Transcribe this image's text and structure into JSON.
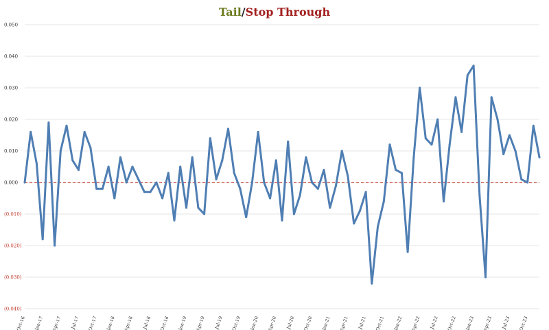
{
  "title": {
    "tail": "Tail",
    "separator": "/",
    "stop_through": "Stop Through"
  },
  "colors": {
    "line": "#4f7eb3",
    "zero_line": "#c0392b",
    "tail_title": "#6b7a1e",
    "stop_title": "#a32020",
    "negative_tick": "#c0392b"
  },
  "chart_data": {
    "type": "line",
    "title": "Tail/Stop Through",
    "ylim": [
      -0.04,
      0.05
    ],
    "grid": "horizontal",
    "reference_line": {
      "y": 0,
      "style": "dashed"
    },
    "y_ticks": [
      {
        "value": 0.05,
        "label": "0.050"
      },
      {
        "value": 0.04,
        "label": "0.040"
      },
      {
        "value": 0.03,
        "label": "0.030"
      },
      {
        "value": 0.02,
        "label": "0.020"
      },
      {
        "value": 0.01,
        "label": "0.010"
      },
      {
        "value": 0.0,
        "label": "0.000"
      },
      {
        "value": -0.01,
        "label": "(0.010)"
      },
      {
        "value": -0.02,
        "label": "(0.020)"
      },
      {
        "value": -0.03,
        "label": "(0.030)"
      },
      {
        "value": -0.04,
        "label": "(0.040)"
      }
    ],
    "x_ticks": [
      {
        "index": 0,
        "label": "Oct-16"
      },
      {
        "index": 3,
        "label": "Jan-17"
      },
      {
        "index": 6,
        "label": "Apr-17"
      },
      {
        "index": 9,
        "label": "Jul-17"
      },
      {
        "index": 12,
        "label": "Oct-17"
      },
      {
        "index": 15,
        "label": "Jan-18"
      },
      {
        "index": 18,
        "label": "Apr-18"
      },
      {
        "index": 21,
        "label": "Jul-18"
      },
      {
        "index": 24,
        "label": "Oct-18"
      },
      {
        "index": 27,
        "label": "Jan-19"
      },
      {
        "index": 30,
        "label": "Apr-19"
      },
      {
        "index": 33,
        "label": "Jul-19"
      },
      {
        "index": 36,
        "label": "Oct-19"
      },
      {
        "index": 39,
        "label": "Jan-20"
      },
      {
        "index": 42,
        "label": "Apr-20"
      },
      {
        "index": 45,
        "label": "Jul-20"
      },
      {
        "index": 48,
        "label": "Oct-20"
      },
      {
        "index": 51,
        "label": "Jan-21"
      },
      {
        "index": 54,
        "label": "Apr-21"
      },
      {
        "index": 57,
        "label": "Jul-21"
      },
      {
        "index": 60,
        "label": "Oct-21"
      },
      {
        "index": 63,
        "label": "Jan-22"
      },
      {
        "index": 66,
        "label": "Apr-22"
      },
      {
        "index": 69,
        "label": "Jul-22"
      },
      {
        "index": 72,
        "label": "Oct-22"
      },
      {
        "index": 75,
        "label": "Jan-23"
      },
      {
        "index": 78,
        "label": "Apr-23"
      },
      {
        "index": 81,
        "label": "Jul-23"
      },
      {
        "index": 84,
        "label": "Oct-23"
      }
    ],
    "values": [
      0.0,
      0.016,
      0.006,
      -0.018,
      0.019,
      -0.02,
      0.01,
      0.018,
      0.007,
      0.004,
      0.016,
      0.011,
      -0.002,
      -0.002,
      0.005,
      -0.005,
      0.008,
      0.0,
      0.005,
      0.001,
      -0.003,
      -0.003,
      0.0,
      -0.005,
      0.003,
      -0.012,
      0.005,
      -0.008,
      0.008,
      -0.008,
      -0.01,
      0.014,
      0.001,
      0.007,
      0.017,
      0.003,
      -0.002,
      -0.011,
      0.0,
      0.016,
      0.0,
      -0.005,
      0.007,
      -0.012,
      0.013,
      -0.01,
      -0.004,
      0.008,
      0.0,
      -0.002,
      0.004,
      -0.008,
      -0.001,
      0.01,
      0.002,
      -0.013,
      -0.009,
      -0.003,
      -0.032,
      -0.014,
      -0.006,
      0.012,
      0.004,
      0.003,
      -0.022,
      0.008,
      0.03,
      0.014,
      0.012,
      0.02,
      -0.006,
      0.012,
      0.027,
      0.016,
      0.034,
      0.037,
      -0.004,
      -0.03,
      0.027,
      0.02,
      0.009,
      0.015,
      0.01,
      0.001,
      0.0,
      0.018,
      0.008
    ]
  }
}
